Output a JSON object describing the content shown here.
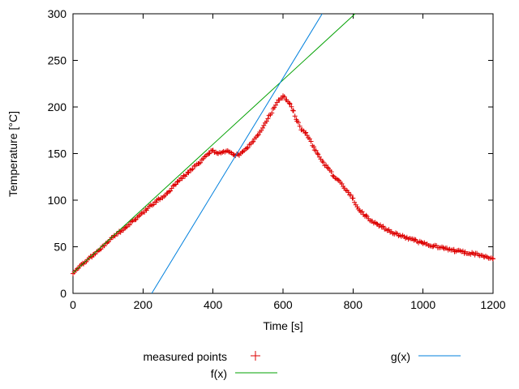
{
  "chart_data": {
    "type": "scatter",
    "title": "",
    "xlabel": "Time [s]",
    "ylabel": "Temperature [°C]",
    "xlim": [
      0,
      1200
    ],
    "ylim": [
      0,
      300
    ],
    "xticks": [
      0,
      200,
      400,
      600,
      800,
      1000,
      1200
    ],
    "yticks": [
      0,
      50,
      100,
      150,
      200,
      250,
      300
    ],
    "grid": false,
    "legend_position": "below",
    "series": [
      {
        "name": "measured points",
        "style": "points",
        "marker": "plus",
        "color": "#dd0000",
        "sample_step": 4,
        "jitter": 1.3,
        "keypoints": [
          [
            0,
            22
          ],
          [
            30,
            32
          ],
          [
            60,
            42
          ],
          [
            90,
            52
          ],
          [
            120,
            62
          ],
          [
            150,
            71
          ],
          [
            180,
            80
          ],
          [
            210,
            90
          ],
          [
            240,
            99
          ],
          [
            270,
            108
          ],
          [
            300,
            120
          ],
          [
            330,
            130
          ],
          [
            360,
            140
          ],
          [
            390,
            151
          ],
          [
            400,
            153
          ],
          [
            415,
            151
          ],
          [
            430,
            152
          ],
          [
            445,
            152
          ],
          [
            460,
            149
          ],
          [
            475,
            148
          ],
          [
            485,
            151
          ],
          [
            500,
            157
          ],
          [
            515,
            163
          ],
          [
            530,
            171
          ],
          [
            545,
            180
          ],
          [
            560,
            190
          ],
          [
            575,
            199
          ],
          [
            590,
            208
          ],
          [
            600,
            211
          ],
          [
            610,
            208
          ],
          [
            620,
            202
          ],
          [
            630,
            195
          ],
          [
            640,
            186
          ],
          [
            648,
            179
          ],
          [
            655,
            175
          ],
          [
            665,
            172
          ],
          [
            672,
            168
          ],
          [
            680,
            162
          ],
          [
            690,
            155
          ],
          [
            700,
            148
          ],
          [
            715,
            140
          ],
          [
            730,
            133
          ],
          [
            745,
            126
          ],
          [
            760,
            120
          ],
          [
            775,
            114
          ],
          [
            790,
            107
          ],
          [
            800,
            101
          ],
          [
            808,
            96
          ],
          [
            815,
            91
          ],
          [
            822,
            88
          ],
          [
            830,
            85
          ],
          [
            840,
            82
          ],
          [
            855,
            77
          ],
          [
            870,
            74
          ],
          [
            890,
            70
          ],
          [
            910,
            66
          ],
          [
            930,
            63
          ],
          [
            950,
            60
          ],
          [
            975,
            57
          ],
          [
            1000,
            54
          ],
          [
            1030,
            51
          ],
          [
            1060,
            48
          ],
          [
            1090,
            46
          ],
          [
            1120,
            44
          ],
          [
            1150,
            42
          ],
          [
            1175,
            40
          ],
          [
            1200,
            37
          ]
        ]
      },
      {
        "name": "f(x)",
        "style": "line",
        "color": "#00a000",
        "points": [
          [
            0,
            22
          ],
          [
            806,
            300
          ]
        ]
      },
      {
        "name": "g(x)",
        "style": "line",
        "color": "#0080dd",
        "points": [
          [
            225,
            0
          ],
          [
            712,
            300
          ]
        ]
      }
    ]
  }
}
